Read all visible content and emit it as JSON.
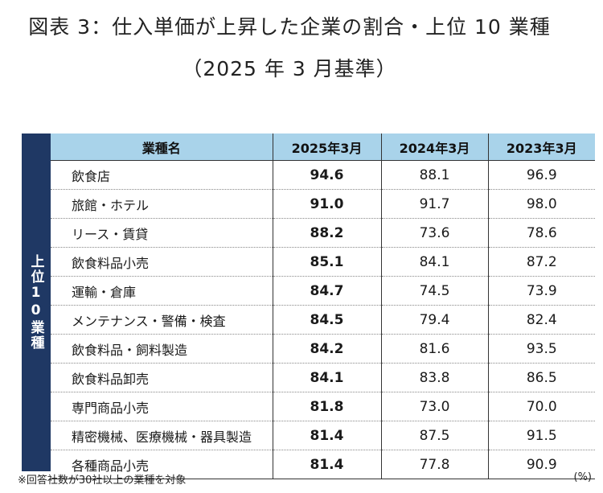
{
  "title_line1": "図表 3：仕入単価が上昇した企業の割合・上位 10 業種",
  "title_line2": "（2025 年 3 月基準）",
  "side_label": "上位10業種",
  "columns": [
    "業種名",
    "2025年3月",
    "2024年3月",
    "2023年3月"
  ],
  "rows": [
    {
      "name": "飲食店",
      "v2025": "94.6",
      "v2024": "88.1",
      "v2023": "96.9"
    },
    {
      "name": "旅館・ホテル",
      "v2025": "91.0",
      "v2024": "91.7",
      "v2023": "98.0"
    },
    {
      "name": "リース・賃貸",
      "v2025": "88.2",
      "v2024": "73.6",
      "v2023": "78.6"
    },
    {
      "name": "飲食料品小売",
      "v2025": "85.1",
      "v2024": "84.1",
      "v2023": "87.2"
    },
    {
      "name": "運輸・倉庫",
      "v2025": "84.7",
      "v2024": "74.5",
      "v2023": "73.9"
    },
    {
      "name": "メンテナンス・警備・検査",
      "v2025": "84.5",
      "v2024": "79.4",
      "v2023": "82.4"
    },
    {
      "name": "飲食料品・飼料製造",
      "v2025": "84.2",
      "v2024": "81.6",
      "v2023": "93.5"
    },
    {
      "name": "飲食料品卸売",
      "v2025": "84.1",
      "v2024": "83.8",
      "v2023": "86.5"
    },
    {
      "name": "専門商品小売",
      "v2025": "81.8",
      "v2024": "73.0",
      "v2023": "70.0"
    },
    {
      "name": "精密機械、医療機械・器具製造",
      "v2025": "81.4",
      "v2024": "87.5",
      "v2023": "91.5"
    },
    {
      "name": "各種商品小売",
      "v2025": "81.4",
      "v2024": "77.8",
      "v2023": "90.9"
    }
  ],
  "footnote": "※回答社数が30社以上の業種を対象",
  "unit": "(%)",
  "colors": {
    "header_bg": "#a9d3ea",
    "side_bg": "#1f3864"
  }
}
